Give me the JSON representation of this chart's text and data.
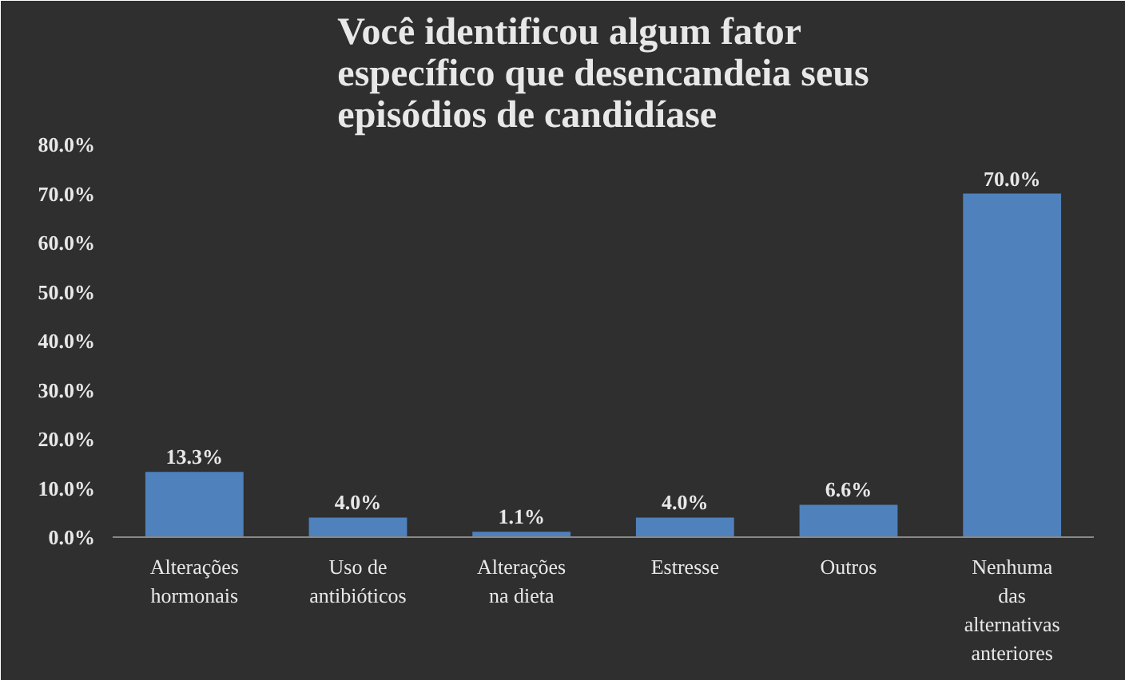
{
  "chart_data": {
    "type": "bar",
    "title": "Você identificou algum fator\nespecífico que desencandeia seus\nepisódios de candidíase",
    "categories": [
      "Alterações\nhormonais",
      "Uso de\nantibióticos",
      "Alterações\nna dieta",
      "Estresse",
      "Outros",
      "Nenhuma\ndas\nalternativas\nanteriores"
    ],
    "values": [
      13.3,
      4.0,
      1.1,
      4.0,
      6.6,
      70.0
    ],
    "color": "#4f81bd",
    "value_labels": [
      "13.3%",
      "4.0%",
      "1.1%",
      "4.0%",
      "6.6%",
      "70.0%"
    ],
    "ylim": [
      0,
      80
    ],
    "yticks": [
      {
        "value": 0,
        "label": "0.0%"
      },
      {
        "value": 10,
        "label": "10.0%"
      },
      {
        "value": 20,
        "label": "20.0%"
      },
      {
        "value": 30,
        "label": "30.0%"
      },
      {
        "value": 40,
        "label": "40.0%"
      },
      {
        "value": 50,
        "label": "50.0%"
      },
      {
        "value": 60,
        "label": "60.0%"
      },
      {
        "value": 70,
        "label": "70.0%"
      },
      {
        "value": 80,
        "label": "80.0%"
      }
    ],
    "grid": false
  }
}
